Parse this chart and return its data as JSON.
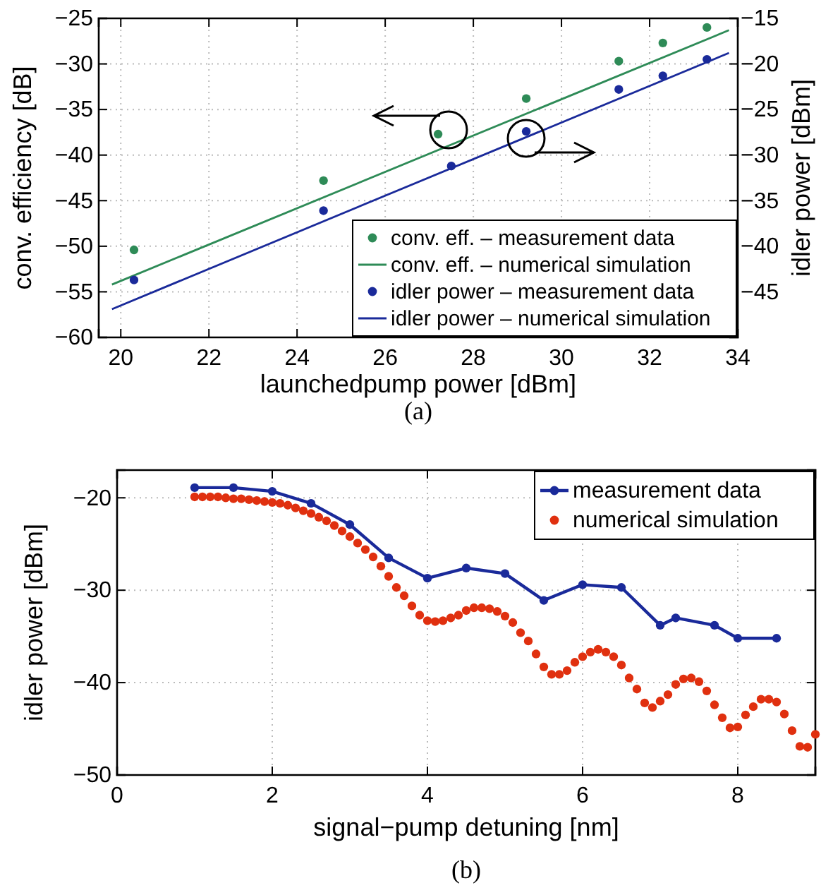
{
  "chart_data": [
    {
      "type": "scatter",
      "xlabel": "launchedpump power [dBm]",
      "ylabel": "conv. efficiency [dB]",
      "y2label": "idler power [dBm]",
      "annotations": [
        "(a)"
      ],
      "xlim": [
        19.5,
        34
      ],
      "xticks": [
        20,
        22,
        24,
        26,
        28,
        30,
        32,
        34
      ],
      "ylim": [
        -60,
        -25
      ],
      "yticks": [
        -60,
        -55,
        -50,
        -45,
        -40,
        -35,
        -30,
        -25
      ],
      "y2lim": [
        -50,
        -15
      ],
      "y2ticks": [
        -45,
        -40,
        -35,
        -30,
        -25,
        -20,
        -15
      ],
      "grid": true,
      "legend": "bottom right",
      "marker": "circle",
      "series": [
        {
          "name": "conv. eff. – measurement data",
          "color": "#2e8b57",
          "x": [
            20.3,
            24.6,
            27.2,
            29.2,
            31.3,
            32.3,
            33.3
          ],
          "values": [
            -50.4,
            -42.8,
            -37.7,
            -33.8,
            -29.7,
            -27.7,
            -26.0
          ]
        },
        {
          "name": "conv. eff. – numerical simulation",
          "type": "line",
          "marker": "none",
          "color": "#2e8b57",
          "x": [
            19.8,
            33.8
          ],
          "values": [
            -54.2,
            -26.3
          ]
        },
        {
          "name": "idler power – measurement data",
          "axis": "y2",
          "color": "#1a2a9a",
          "x": [
            20.3,
            24.6,
            27.5,
            29.2,
            31.3,
            32.3,
            33.3
          ],
          "values": [
            -43.7,
            -36.1,
            -31.2,
            -27.4,
            -22.8,
            -21.3,
            -19.5
          ]
        },
        {
          "name": "idler power – numerical simulation",
          "type": "line",
          "marker": "none",
          "axis": "y2",
          "color": "#1a2a9a",
          "x": [
            19.8,
            33.8
          ],
          "values": [
            -46.9,
            -18.8
          ]
        }
      ]
    },
    {
      "type": "line",
      "xlabel": "signal−pump detuning [nm]",
      "ylabel": "idler power [dBm]",
      "annotations": [
        "(b)"
      ],
      "xlim": [
        0,
        9
      ],
      "xticks": [
        0,
        2,
        4,
        6,
        8
      ],
      "ylim": [
        -50,
        -17
      ],
      "yticks": [
        -50,
        -40,
        -30,
        -20
      ],
      "grid": true,
      "legend": "top right",
      "marker": "circle",
      "series": [
        {
          "name": "measurement data",
          "color": "#1a2a9a",
          "x": [
            1.0,
            1.5,
            2.0,
            2.5,
            3.0,
            3.5,
            4.0,
            4.5,
            5.0,
            5.5,
            6.0,
            6.5,
            7.0,
            7.2,
            7.7,
            8.0,
            8.5
          ],
          "values": [
            -18.9,
            -18.9,
            -19.3,
            -20.6,
            -22.9,
            -26.5,
            -28.7,
            -27.6,
            -28.2,
            -31.1,
            -29.4,
            -29.7,
            -33.8,
            -33.0,
            -33.8,
            -35.2,
            -35.2
          ]
        },
        {
          "name": "numerical simulation",
          "type": "scatter",
          "color": "#e0300f",
          "x": [
            1.0,
            1.1,
            1.2,
            1.3,
            1.4,
            1.5,
            1.6,
            1.7,
            1.8,
            1.9,
            2.0,
            2.1,
            2.2,
            2.3,
            2.4,
            2.5,
            2.6,
            2.7,
            2.8,
            2.9,
            3.0,
            3.1,
            3.2,
            3.3,
            3.4,
            3.5,
            3.6,
            3.7,
            3.8,
            3.9,
            4.0,
            4.1,
            4.2,
            4.3,
            4.4,
            4.5,
            4.6,
            4.7,
            4.8,
            4.9,
            5.0,
            5.1,
            5.2,
            5.3,
            5.4,
            5.5,
            5.6,
            5.7,
            5.8,
            5.9,
            6.0,
            6.1,
            6.2,
            6.3,
            6.4,
            6.5,
            6.6,
            6.7,
            6.8,
            6.9,
            7.0,
            7.1,
            7.2,
            7.3,
            7.4,
            7.5,
            7.6,
            7.7,
            7.8,
            7.9,
            8.0,
            8.1,
            8.2,
            8.3,
            8.4,
            8.5,
            8.6,
            8.7,
            8.8,
            8.9,
            9.0
          ],
          "values": [
            -19.9,
            -19.9,
            -19.9,
            -19.9,
            -20.0,
            -20.1,
            -20.1,
            -20.2,
            -20.3,
            -20.4,
            -20.5,
            -20.6,
            -20.8,
            -21.1,
            -21.4,
            -21.7,
            -22.1,
            -22.5,
            -23.0,
            -23.6,
            -24.2,
            -24.9,
            -25.6,
            -26.4,
            -27.4,
            -28.5,
            -29.7,
            -30.6,
            -31.7,
            -32.7,
            -33.3,
            -33.4,
            -33.3,
            -33.0,
            -32.7,
            -32.2,
            -31.9,
            -31.9,
            -32.0,
            -32.3,
            -32.8,
            -33.5,
            -34.6,
            -35.5,
            -36.9,
            -38.3,
            -39.1,
            -39.1,
            -38.7,
            -37.8,
            -37.2,
            -36.7,
            -36.4,
            -36.7,
            -37.2,
            -38.1,
            -39.5,
            -40.7,
            -42.2,
            -42.7,
            -42.0,
            -41.3,
            -40.2,
            -39.6,
            -39.5,
            -39.9,
            -40.9,
            -42.4,
            -43.8,
            -44.9,
            -44.8,
            -43.5,
            -42.6,
            -41.8,
            -41.8,
            -42.1,
            -43.4,
            -45.2,
            -46.9,
            -47.0,
            -45.6
          ]
        }
      ]
    }
  ]
}
